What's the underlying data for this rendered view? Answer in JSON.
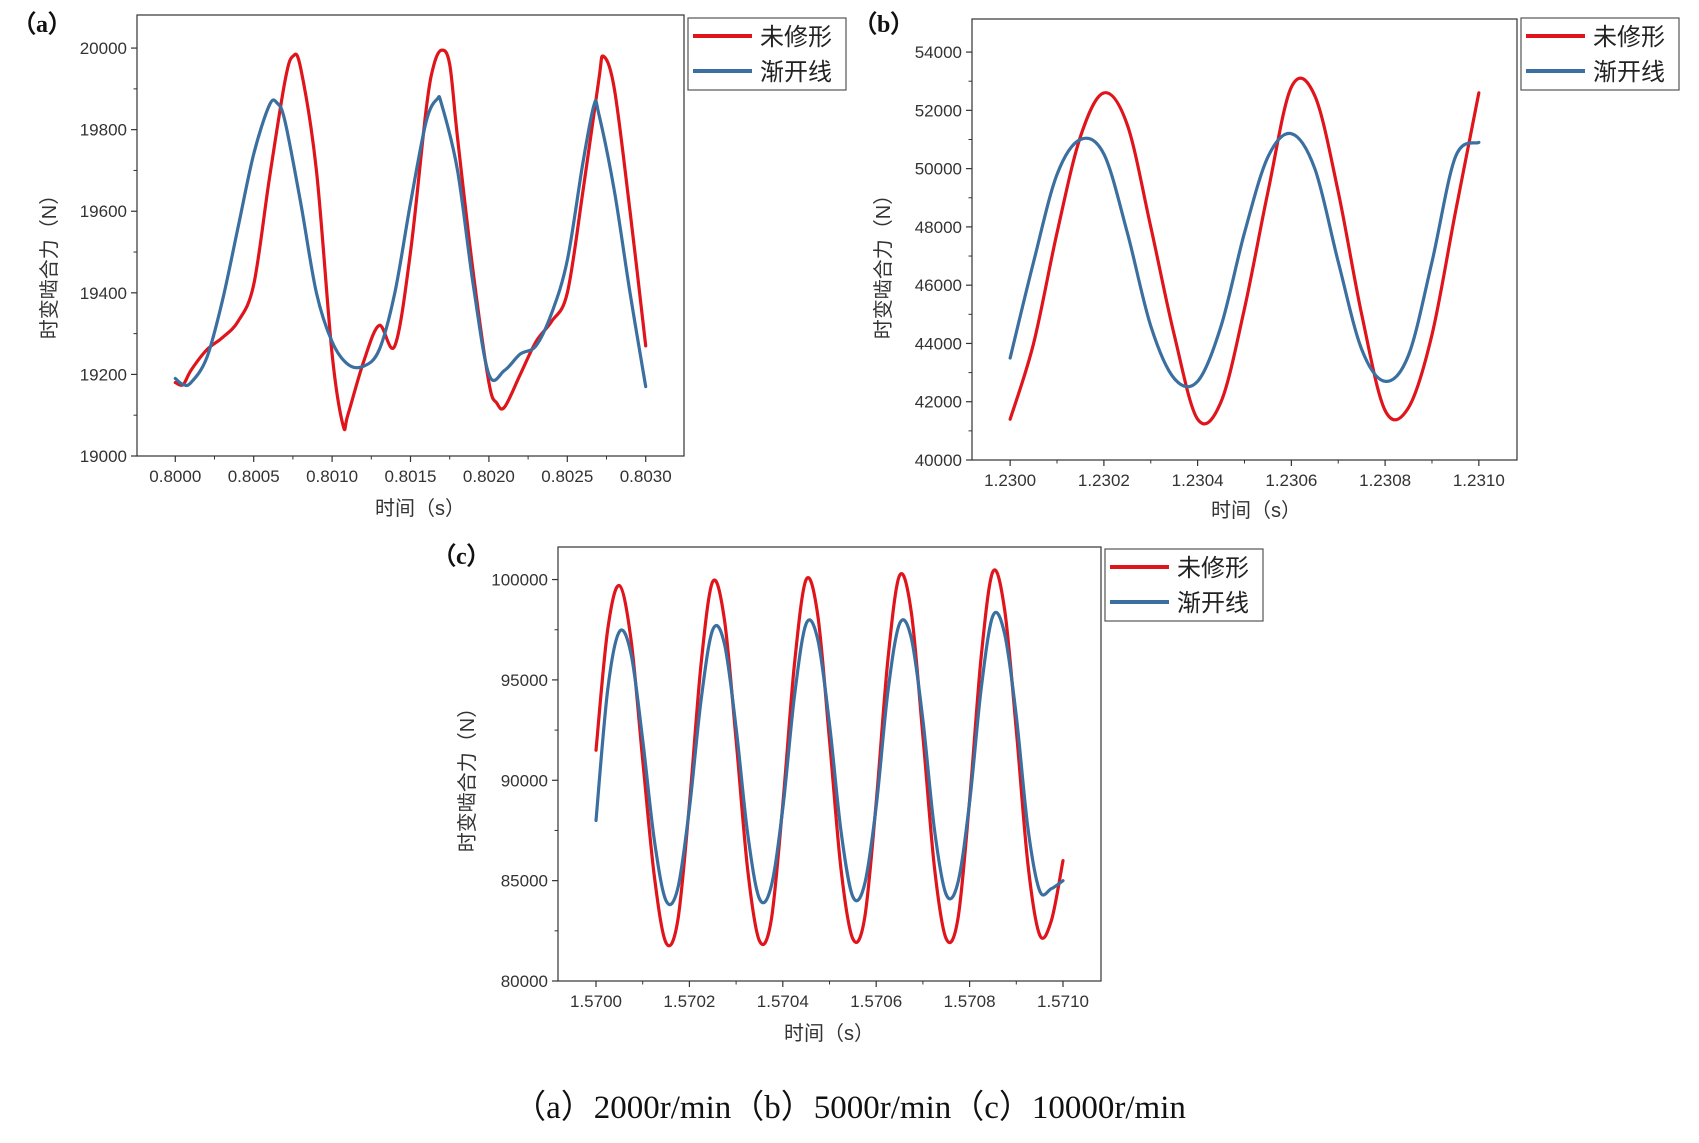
{
  "caption": "（a）2000r/min（b）5000r/min（c）10000r/min",
  "colors": {
    "unmodified": "#e0141b",
    "involute": "#3a6fa0",
    "axis": "#333333",
    "legend_border": "#555555"
  },
  "chart_data": [
    {
      "type": "line",
      "panel_label": "（a）",
      "xlabel": "时间（s）",
      "ylabel": "时变啮合力（N）",
      "xlim": [
        0.8,
        0.803
      ],
      "ylim": [
        19000,
        20000
      ],
      "xticks": [
        0.8,
        0.8005,
        0.801,
        0.8015,
        0.802,
        0.8025,
        0.803
      ],
      "xtick_labels": [
        "0.8000",
        "0.8005",
        "0.8010",
        "0.8015",
        "0.8020",
        "0.8025",
        "0.8030"
      ],
      "yticks": [
        19000,
        19200,
        19400,
        19600,
        19800,
        20000
      ],
      "ytick_labels": [
        "19000",
        "19200",
        "19400",
        "19600",
        "19800",
        "20000"
      ],
      "grid": false,
      "legend": "outside-right-top",
      "series": [
        {
          "name": "未修形",
          "x": [
            0.8,
            0.80005,
            0.8001,
            0.8002,
            0.8003,
            0.8004,
            0.8005,
            0.8006,
            0.8007,
            0.80075,
            0.8008,
            0.8009,
            0.801,
            0.80107,
            0.8011,
            0.8012,
            0.8013,
            0.8014,
            0.8015,
            0.8016,
            0.80165,
            0.8017,
            0.80175,
            0.8018,
            0.8019,
            0.802,
            0.80205,
            0.8021,
            0.8022,
            0.8023,
            0.8024,
            0.8025,
            0.8026,
            0.8027,
            0.80273,
            0.8028,
            0.8029,
            0.803
          ],
          "y": [
            19180,
            19175,
            19210,
            19260,
            19290,
            19330,
            19420,
            19680,
            19920,
            19980,
            19950,
            19700,
            19250,
            19075,
            19100,
            19230,
            19320,
            19270,
            19500,
            19850,
            19960,
            19995,
            19960,
            19780,
            19450,
            19180,
            19130,
            19120,
            19200,
            19280,
            19330,
            19400,
            19650,
            19920,
            19980,
            19900,
            19600,
            19270
          ]
        },
        {
          "name": "渐开线",
          "x": [
            0.8,
            0.80005,
            0.8001,
            0.8002,
            0.8003,
            0.8004,
            0.8005,
            0.8006,
            0.80065,
            0.8007,
            0.8008,
            0.8009,
            0.801,
            0.8011,
            0.8012,
            0.8013,
            0.8014,
            0.8015,
            0.8016,
            0.80167,
            0.8017,
            0.8018,
            0.8019,
            0.802,
            0.8021,
            0.8022,
            0.8023,
            0.8024,
            0.8025,
            0.8026,
            0.80267,
            0.8027,
            0.8028,
            0.8029,
            0.803
          ],
          "y": [
            19190,
            19175,
            19180,
            19240,
            19380,
            19560,
            19740,
            19860,
            19865,
            19820,
            19620,
            19400,
            19280,
            19225,
            19220,
            19260,
            19400,
            19620,
            19820,
            19875,
            19860,
            19700,
            19420,
            19200,
            19210,
            19250,
            19270,
            19350,
            19480,
            19720,
            19860,
            19840,
            19650,
            19400,
            19170
          ]
        }
      ]
    },
    {
      "type": "line",
      "panel_label": "（b）",
      "xlabel": "时间（s）",
      "ylabel": "时变啮合力（N）",
      "xlim": [
        1.23,
        1.231
      ],
      "ylim": [
        40000,
        54000
      ],
      "xticks": [
        1.23,
        1.2302,
        1.2304,
        1.2306,
        1.2308,
        1.231
      ],
      "xtick_labels": [
        "1.2300",
        "1.2302",
        "1.2304",
        "1.2306",
        "1.2308",
        "1.2310"
      ],
      "yticks": [
        40000,
        42000,
        44000,
        46000,
        48000,
        50000,
        52000,
        54000
      ],
      "ytick_labels": [
        "40000",
        "42000",
        "44000",
        "46000",
        "48000",
        "50000",
        "52000",
        "54000"
      ],
      "grid": false,
      "legend": "outside-right-top",
      "series": [
        {
          "name": "未修形",
          "x": [
            1.23,
            1.23005,
            1.2301,
            1.23015,
            1.2302,
            1.23025,
            1.2303,
            1.23035,
            1.2304,
            1.23045,
            1.2305,
            1.23055,
            1.2306,
            1.23065,
            1.2307,
            1.23075,
            1.2308,
            1.23085,
            1.2309,
            1.23095,
            1.231
          ],
          "y": [
            41400,
            44000,
            47800,
            51100,
            52600,
            51500,
            48000,
            44300,
            41400,
            42000,
            45200,
            49200,
            52800,
            52500,
            49200,
            45000,
            41700,
            41800,
            44300,
            48500,
            52600
          ]
        },
        {
          "name": "渐开线",
          "x": [
            1.23,
            1.23005,
            1.2301,
            1.23015,
            1.2302,
            1.23025,
            1.2303,
            1.23035,
            1.2304,
            1.23045,
            1.2305,
            1.23055,
            1.2306,
            1.23065,
            1.2307,
            1.23075,
            1.2308,
            1.23085,
            1.2309,
            1.23095,
            1.231
          ],
          "y": [
            43500,
            46800,
            49800,
            51000,
            50500,
            47800,
            44600,
            42800,
            42700,
            44600,
            47800,
            50400,
            51200,
            50000,
            46800,
            43800,
            42700,
            43600,
            46800,
            50400,
            50900
          ]
        }
      ]
    },
    {
      "type": "line",
      "panel_label": "（c）",
      "xlabel": "时间（s）",
      "ylabel": "时变啮合力（N）",
      "xlim": [
        1.57,
        1.571
      ],
      "ylim": [
        80000,
        100000
      ],
      "xticks": [
        1.57,
        1.5702,
        1.5704,
        1.5706,
        1.5708,
        1.571
      ],
      "xtick_labels": [
        "1.5700",
        "1.5702",
        "1.5704",
        "1.5706",
        "1.5708",
        "1.5710"
      ],
      "yticks": [
        80000,
        85000,
        90000,
        95000,
        100000
      ],
      "ytick_labels": [
        "80000",
        "85000",
        "90000",
        "95000",
        "100000"
      ],
      "grid": false,
      "legend": "outside-right-top",
      "series": [
        {
          "name": "未修形",
          "x": [
            1.57,
            1.570025,
            1.57005,
            1.570075,
            1.5701,
            1.570125,
            1.57015,
            1.570175,
            1.5702,
            1.570225,
            1.57025,
            1.570275,
            1.5703,
            1.570325,
            1.57035,
            1.570375,
            1.5704,
            1.570425,
            1.57045,
            1.570475,
            1.5705,
            1.570525,
            1.57055,
            1.570575,
            1.5706,
            1.570625,
            1.57065,
            1.570675,
            1.5707,
            1.570725,
            1.57075,
            1.570775,
            1.5708,
            1.570825,
            1.57085,
            1.570875,
            1.5709,
            1.570925,
            1.57095,
            1.570975,
            1.571
          ],
          "y": [
            91500,
            97500,
            99700,
            97000,
            91000,
            85200,
            81900,
            83000,
            88800,
            95800,
            99900,
            98000,
            92000,
            85500,
            82000,
            83000,
            88800,
            95800,
            100000,
            98200,
            92000,
            85500,
            82100,
            83100,
            88900,
            96000,
            100200,
            98400,
            92200,
            85600,
            82100,
            83100,
            89000,
            96200,
            100400,
            98500,
            92500,
            85800,
            82300,
            83000,
            86000
          ]
        },
        {
          "name": "渐开线",
          "x": [
            1.57,
            1.570025,
            1.57005,
            1.570075,
            1.5701,
            1.570125,
            1.57015,
            1.570175,
            1.5702,
            1.570225,
            1.57025,
            1.570275,
            1.5703,
            1.570325,
            1.57035,
            1.570375,
            1.5704,
            1.570425,
            1.57045,
            1.570475,
            1.5705,
            1.570525,
            1.57055,
            1.570575,
            1.5706,
            1.570625,
            1.57065,
            1.570675,
            1.5707,
            1.570725,
            1.57075,
            1.570775,
            1.5708,
            1.570825,
            1.57085,
            1.570875,
            1.5709,
            1.570925,
            1.57095,
            1.570975,
            1.571
          ],
          "y": [
            88000,
            94500,
            97400,
            96300,
            92000,
            87000,
            84000,
            84600,
            88600,
            94000,
            97500,
            96800,
            92600,
            87300,
            84100,
            84700,
            88600,
            94200,
            97800,
            97000,
            92800,
            87400,
            84200,
            84800,
            88700,
            94400,
            97800,
            97100,
            93000,
            87500,
            84300,
            84900,
            88900,
            94600,
            98200,
            97300,
            93200,
            87600,
            84500,
            84600,
            85000
          ]
        }
      ]
    }
  ]
}
